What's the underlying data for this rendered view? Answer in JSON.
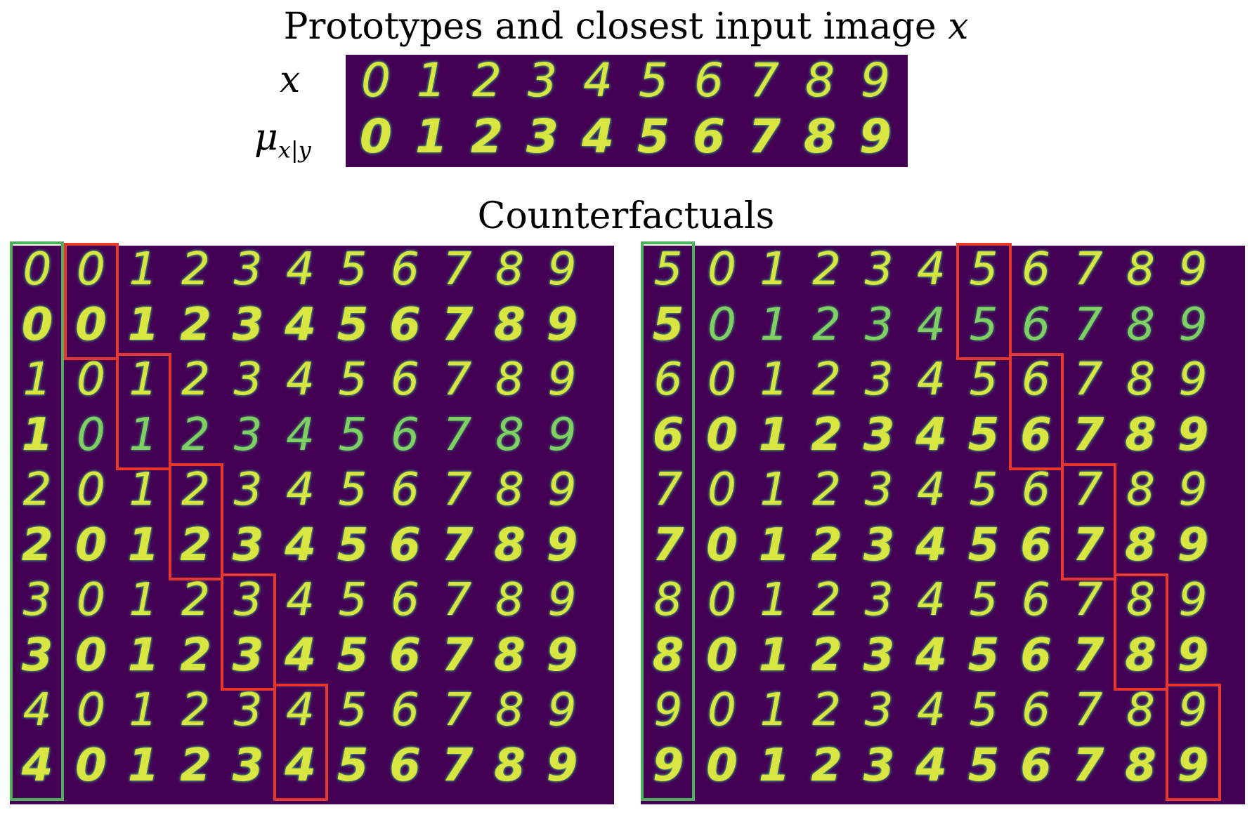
{
  "figure": {
    "top_title_prefix": "Prototypes and closest input image ",
    "top_title_var": "x",
    "bottom_title": "Counterfactuals",
    "row_label_x": "x",
    "row_label_mu_symbol": "μ",
    "row_label_mu_sub": "x|y"
  },
  "prototypes": {
    "x_row": [
      "0",
      "1",
      "2",
      "3",
      "4",
      "5",
      "6",
      "7",
      "8",
      "9"
    ],
    "mu_row": [
      "0",
      "1",
      "2",
      "3",
      "4",
      "5",
      "6",
      "7",
      "8",
      "9"
    ]
  },
  "counterfactuals": {
    "left_panel": {
      "source_digits": [
        "0",
        "0",
        "1",
        "1",
        "2",
        "2",
        "3",
        "3",
        "4",
        "4"
      ],
      "columns": [
        "0",
        "1",
        "2",
        "3",
        "4",
        "5",
        "6",
        "7",
        "8",
        "9"
      ]
    },
    "right_panel": {
      "source_digits": [
        "5",
        "5",
        "6",
        "6",
        "7",
        "7",
        "8",
        "8",
        "9",
        "9"
      ],
      "columns": [
        "0",
        "1",
        "2",
        "3",
        "4",
        "5",
        "6",
        "7",
        "8",
        "9"
      ]
    }
  },
  "colors": {
    "background": "#440154",
    "digit": "#d9e540",
    "source_box": "#4daf5a",
    "highlight_box": "#e8372c"
  }
}
